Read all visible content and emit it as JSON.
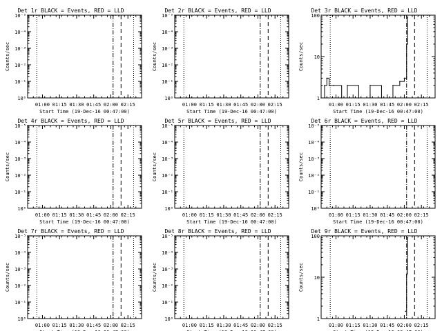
{
  "figure": {
    "time_ticks": [
      "01:00",
      "01:15",
      "01:30",
      "01:45",
      "02:00",
      "02:15"
    ],
    "xlabel": "Start Time (19-Dec-16 00:47:00)",
    "ylabel": "Counts/sec",
    "log_ticks_small": [
      "10⁰",
      "10⁻¹",
      "10⁻²",
      "10⁻³",
      "10⁻⁴",
      "10⁻⁵"
    ],
    "log_ticks_large": [
      "1",
      "10",
      "100"
    ],
    "colors": {
      "events": "#000000",
      "lld": "#ff0000",
      "axes": "#000000",
      "background": "#ffffff"
    }
  },
  "chart_data": [
    {
      "title": "Det 1r BLACK = Events, RED = LLD",
      "type": "line",
      "yscale": "log",
      "ylim": [
        1e-05,
        1
      ],
      "x_marks": {
        "dotted": [
          "00:55",
          "02:20"
        ],
        "dashdot": "02:02",
        "dashed": "02:09"
      },
      "series": [
        {
          "x": [
            "00:47",
            "00:50"
          ],
          "y": [
            1,
            1
          ]
        },
        {
          "x": [
            "02:01",
            "02:04"
          ],
          "y": [
            1,
            1
          ]
        }
      ]
    },
    {
      "title": "Det 2r BLACK = Events, RED = LLD",
      "type": "line",
      "yscale": "log",
      "ylim": [
        1e-05,
        1
      ],
      "x_marks": {
        "dotted": [
          "00:55",
          "02:20"
        ],
        "dashdot": "02:02",
        "dashed": "02:09"
      },
      "series": [
        {
          "x": [
            "00:47",
            "00:50"
          ],
          "y": [
            1,
            1
          ]
        },
        {
          "x": [
            "02:01",
            "02:04"
          ],
          "y": [
            1,
            1
          ]
        }
      ]
    },
    {
      "title": "Det 3r BLACK = Events, RED = LLD",
      "type": "line",
      "yscale": "log",
      "ylim": [
        1,
        100
      ],
      "x_marks": {
        "dotted": [
          "00:55",
          "02:20"
        ],
        "dashdot": "02:02",
        "dashed": "02:09"
      },
      "series": [
        {
          "x": [
            "00:47",
            "00:50",
            "00:52",
            "00:54",
            "00:58",
            "01:05",
            "01:10",
            "01:20",
            "01:30",
            "01:40",
            "01:50",
            "01:56",
            "02:00",
            "02:02",
            "02:03"
          ],
          "y": [
            1,
            2,
            3,
            2,
            2,
            1,
            2,
            1,
            2,
            1,
            2,
            2.5,
            3,
            20,
            90
          ]
        }
      ]
    },
    {
      "title": "Det 4r BLACK = Events, RED = LLD",
      "type": "line",
      "yscale": "log",
      "ylim": [
        1e-05,
        1
      ],
      "x_marks": {
        "dotted": [
          "00:55",
          "02:20"
        ],
        "dashdot": "02:02",
        "dashed": "02:09"
      },
      "series": [
        {
          "x": [
            "00:47",
            "00:50"
          ],
          "y": [
            1,
            1
          ]
        },
        {
          "x": [
            "02:01",
            "02:04"
          ],
          "y": [
            1,
            1
          ]
        }
      ]
    },
    {
      "title": "Det 5r BLACK = Events, RED = LLD",
      "type": "line",
      "yscale": "log",
      "ylim": [
        1e-05,
        1
      ],
      "x_marks": {
        "dotted": [
          "00:55",
          "02:20"
        ],
        "dashdot": "02:02",
        "dashed": "02:09"
      },
      "series": [
        {
          "x": [
            "00:47",
            "00:50"
          ],
          "y": [
            1,
            1
          ]
        },
        {
          "x": [
            "02:01",
            "02:04"
          ],
          "y": [
            1,
            1
          ]
        }
      ]
    },
    {
      "title": "Det 6r BLACK = Events, RED = LLD",
      "type": "line",
      "yscale": "log",
      "ylim": [
        1e-05,
        1
      ],
      "x_marks": {
        "dotted": [
          "00:55",
          "02:20"
        ],
        "dashdot": "02:02",
        "dashed": "02:09"
      },
      "series": [
        {
          "x": [
            "00:47",
            "00:50"
          ],
          "y": [
            1,
            1
          ]
        },
        {
          "x": [
            "02:01",
            "02:04"
          ],
          "y": [
            1,
            1
          ]
        }
      ]
    },
    {
      "title": "Det 7r BLACK = Events, RED = LLD",
      "type": "line",
      "yscale": "log",
      "ylim": [
        1e-05,
        1
      ],
      "x_marks": {
        "dotted": [
          "00:55",
          "02:20"
        ],
        "dashdot": "02:02",
        "dashed": "02:09"
      },
      "series": [
        {
          "x": [
            "00:47",
            "00:50"
          ],
          "y": [
            1,
            1
          ]
        },
        {
          "x": [
            "02:01",
            "02:04"
          ],
          "y": [
            1,
            1
          ]
        }
      ]
    },
    {
      "title": "Det 8r BLACK = Events, RED = LLD",
      "type": "line",
      "yscale": "log",
      "ylim": [
        1e-05,
        1
      ],
      "x_marks": {
        "dotted": [
          "00:55",
          "02:20"
        ],
        "dashdot": "02:02",
        "dashed": "02:09"
      },
      "series": [
        {
          "x": [
            "00:47",
            "00:50"
          ],
          "y": [
            1,
            1
          ]
        },
        {
          "x": [
            "02:01",
            "02:04"
          ],
          "y": [
            1,
            1
          ]
        }
      ]
    },
    {
      "title": "Det 9r BLACK = Events, RED = LLD",
      "type": "line",
      "yscale": "log",
      "ylim": [
        1,
        100
      ],
      "x_marks": {
        "dotted": [
          "00:55",
          "02:20"
        ],
        "dashdot": "02:02",
        "dashed": "02:09"
      },
      "series": [
        {
          "x": [
            "02:01",
            "02:02",
            "02:03"
          ],
          "y": [
            1.5,
            12,
            90
          ]
        }
      ]
    }
  ]
}
